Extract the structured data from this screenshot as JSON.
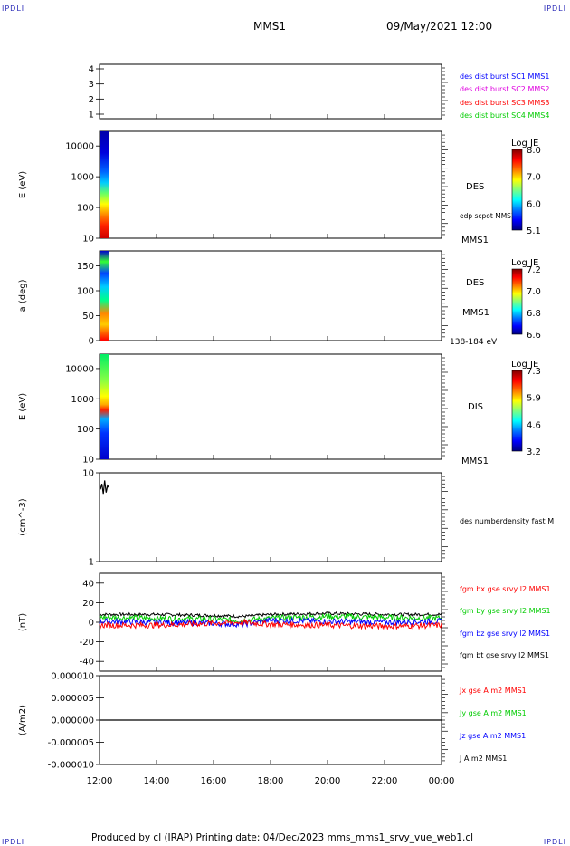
{
  "corners": {
    "tl": "IPDLI",
    "tr": "IPDLI",
    "bl": "IPDLI",
    "br": "IPDLI"
  },
  "header": {
    "mission": "MMS1",
    "datetime": "09/May/2021 12:00"
  },
  "footer": {
    "text": "Produced by cl (IRAP)   Printing date: 04/Dec/2023   mms_mms1_srvy_vue_web1.cl"
  },
  "colors": {
    "blue": "#0000ff",
    "magenta": "#e000e0",
    "red": "#ff0000",
    "green": "#00cc00",
    "black": "#000000"
  },
  "chart_data": [
    {
      "type": "heatmap",
      "panel": "burst",
      "yticks": [
        1,
        2,
        3,
        4
      ],
      "ylim": [
        0.7,
        4.3
      ],
      "legend": [
        {
          "text": "des dist burst SC1 MMS1",
          "color": "#0000ff"
        },
        {
          "text": "des dist burst SC2 MMS2",
          "color": "#e000e0"
        },
        {
          "text": "des dist burst SC3 MMS3",
          "color": "#ff0000"
        },
        {
          "text": "des dist burst SC4 MMS4",
          "color": "#00cc00"
        }
      ]
    },
    {
      "type": "heatmap",
      "panel": "des_energy",
      "scale": "log",
      "ylabel": "E (eV)",
      "ytick_labels": [
        "10",
        "100",
        "1000",
        "10000"
      ],
      "yticks": [
        10,
        100,
        1000,
        10000
      ],
      "ylim": [
        10,
        30000
      ],
      "species": "DES",
      "extra_label": "edp scpot MMS1",
      "bottom_label": "MMS1",
      "colorbar": {
        "title": "Log JE",
        "ticks": [
          "8.0",
          "7.0",
          "6.0",
          "5.1"
        ]
      },
      "data_span": {
        "x_start": "12:00",
        "x_end": "12:15"
      }
    },
    {
      "type": "heatmap",
      "panel": "des_pitch",
      "ylabel": "a (deg)",
      "ytick_labels": [
        "0",
        "50",
        "100",
        "150"
      ],
      "yticks": [
        0,
        50,
        100,
        150
      ],
      "ylim": [
        0,
        180
      ],
      "species": "DES",
      "sub_label": "MMS1",
      "bottom_label": "138-184 eV",
      "colorbar": {
        "title": "Log JE",
        "ticks": [
          "7.2",
          "7.0",
          "6.8",
          "6.6"
        ]
      }
    },
    {
      "type": "heatmap",
      "panel": "dis_energy",
      "scale": "log",
      "ylabel": "E (eV)",
      "ytick_labels": [
        "10",
        "100",
        "1000",
        "10000"
      ],
      "yticks": [
        10,
        100,
        1000,
        10000
      ],
      "ylim": [
        10,
        30000
      ],
      "species": "DIS",
      "bottom_label": "MMS1",
      "colorbar": {
        "title": "Log JE",
        "ticks": [
          "7.3",
          "5.9",
          "4.6",
          "3.2"
        ]
      }
    },
    {
      "type": "line",
      "panel": "density",
      "scale": "log",
      "ylabel": "(cm^-3)",
      "ytick_labels": [
        "1",
        "10"
      ],
      "yticks": [
        1,
        10
      ],
      "ylim": [
        1,
        10
      ],
      "legend": [
        {
          "text": "des numberdensity fast M",
          "color": "#000000"
        }
      ],
      "series": [
        {
          "x": [
            0.0,
            0.05,
            0.1,
            0.15,
            0.2,
            0.25,
            0.3
          ],
          "values": [
            6.5,
            7.5,
            5.8,
            8.2,
            6.0,
            7.2,
            6.8
          ]
        }
      ]
    },
    {
      "type": "line",
      "panel": "fgm",
      "ylabel": "(nT)",
      "ytick_labels": [
        "-40",
        "-20",
        "0",
        "20",
        "40"
      ],
      "yticks": [
        -40,
        -20,
        0,
        20,
        40
      ],
      "ylim": [
        -50,
        50
      ],
      "legend": [
        {
          "text": "fgm bx gse srvy l2 MMS1",
          "color": "#ff0000"
        },
        {
          "text": "fgm by gse srvy l2 MMS1",
          "color": "#00cc00"
        },
        {
          "text": "fgm bz gse srvy l2 MMS1",
          "color": "#0000ff"
        },
        {
          "text": "fgm bt gse srvy l2 MMS1",
          "color": "#000000"
        }
      ],
      "series": [
        {
          "color": "#000000",
          "x": [
            0,
            2,
            4,
            5,
            6,
            8,
            10,
            12
          ],
          "values": [
            8,
            8,
            7,
            6,
            8,
            9,
            8,
            8
          ]
        },
        {
          "color": "#00cc00",
          "x": [
            0,
            2,
            4,
            5,
            6,
            8,
            10,
            12
          ],
          "values": [
            5,
            4,
            3,
            2,
            4,
            6,
            5,
            4
          ]
        },
        {
          "color": "#0000ff",
          "x": [
            0,
            2,
            4,
            5,
            6,
            8,
            10,
            12
          ],
          "values": [
            1,
            0,
            -1,
            -2,
            2,
            1,
            0,
            1
          ]
        },
        {
          "color": "#ff0000",
          "x": [
            0,
            2,
            4,
            5,
            6,
            8,
            10,
            12
          ],
          "values": [
            -3,
            -3,
            -1,
            0,
            -2,
            -3,
            -4,
            -3
          ]
        }
      ]
    },
    {
      "type": "line",
      "panel": "current",
      "ylabel": "(A/m2)",
      "ytick_labels": [
        "-0.000010",
        "-0.000005",
        "0.000000",
        "0.000005",
        "0.000010"
      ],
      "yticks": [
        -1e-05,
        -5e-06,
        0,
        5e-06,
        1e-05
      ],
      "ylim": [
        -1e-05,
        1e-05
      ],
      "legend": [
        {
          "text": "Jx gse A m2 MMS1",
          "color": "#ff0000"
        },
        {
          "text": "Jy gse A m2 MMS1",
          "color": "#00cc00"
        },
        {
          "text": "Jz gse A m2 MMS1",
          "color": "#0000ff"
        },
        {
          "text": "J A m2 MMS1",
          "color": "#000000"
        }
      ],
      "series": [
        {
          "color": "#000000",
          "x": [
            0,
            12
          ],
          "values": [
            0,
            0
          ]
        }
      ]
    }
  ],
  "xaxis": {
    "ticks": [
      "12:00",
      "14:00",
      "16:00",
      "18:00",
      "20:00",
      "22:00",
      "00:00"
    ],
    "x_hours": [
      0,
      2,
      4,
      6,
      8,
      10,
      12
    ]
  }
}
